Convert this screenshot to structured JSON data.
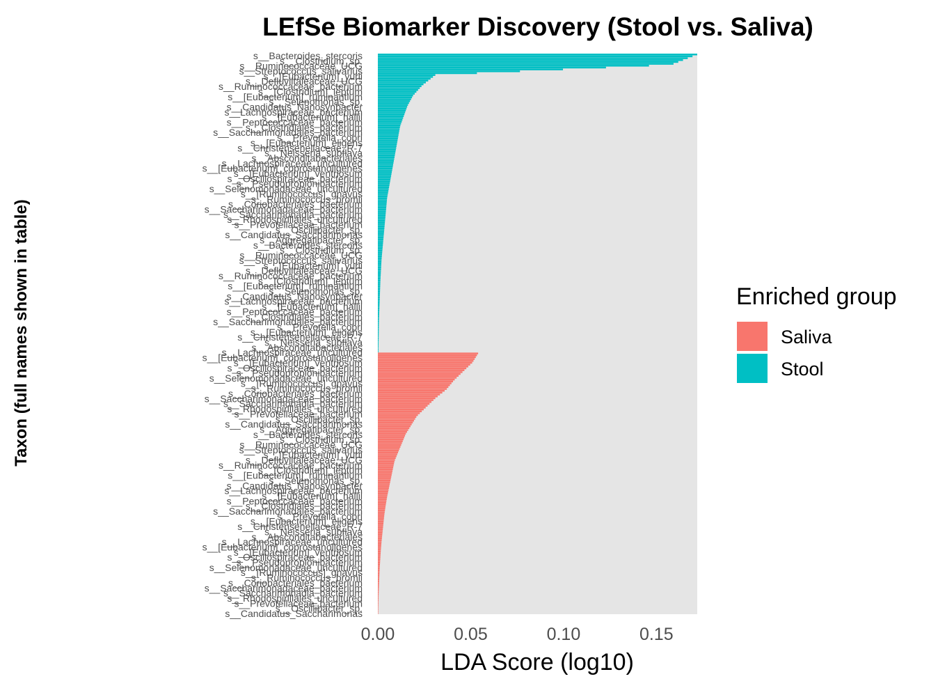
{
  "chart_data": {
    "type": "bar",
    "orientation": "horizontal",
    "title": "LEfSe Biomarker Discovery (Stool vs. Saliva)",
    "xlabel": "LDA Score (log10)",
    "ylabel": "Taxon (full names shown in table)",
    "xlim": [
      0,
      0.172
    ],
    "x_ticks": [
      "0.00",
      "0.05",
      "0.10",
      "0.15"
    ],
    "x_tick_values": [
      0,
      0.05,
      0.1,
      0.15
    ],
    "grid": false,
    "legend": {
      "title": "Enriched group",
      "placement": "right",
      "entries": [
        {
          "name": "Saliva",
          "color": "#F8766D"
        },
        {
          "name": "Stool",
          "color": "#00BFC4"
        }
      ]
    },
    "series": [
      {
        "name": "Stool",
        "color": "#00BFC4",
        "count": 160,
        "values": [
          0.172,
          0.158,
          0.031,
          0.024,
          0.019,
          0.016,
          0.014,
          0.012,
          0.011,
          0.01,
          0.009,
          0.008,
          0.007,
          0.006,
          0.005,
          0.0045,
          0.004,
          0.0035,
          0.003,
          0.0025,
          0.002,
          0.0017,
          0.0014,
          0.0012,
          0.001,
          0.0008,
          0.0006,
          0.0005,
          0.0004,
          0.0003
        ]
      },
      {
        "name": "Saliva",
        "color": "#F8766D",
        "count": 140,
        "values": [
          0.054,
          0.051,
          0.046,
          0.041,
          0.037,
          0.031,
          0.026,
          0.021,
          0.018,
          0.015,
          0.013,
          0.011,
          0.009,
          0.008,
          0.007,
          0.006,
          0.005,
          0.0042,
          0.0035,
          0.003,
          0.0025,
          0.002,
          0.0016,
          0.0013,
          0.001,
          0.0008,
          0.0006,
          0.0004,
          0.0003,
          0.0002
        ]
      }
    ],
    "taxon_labels": [
      "s__Bacteroides_stercoris",
      "s__Prevotella_copri",
      "s__Rhodospirillales_uncultured",
      "s__Lachnospiraceae_bacterium",
      "s__[Ruminococcus]_gnavus",
      "s__Ruminococcaceae_bacterium",
      "s__[Eubacterium]_coprostanoligenes",
      "s__Clostridium_sp.",
      "s__[Eubacterium]_eligens",
      "s__Prevotellaceae_bacterium",
      "s__[Eubacterium]_hallii",
      "s__Ruminococcus_bromii",
      "s__[Clostridium]_leptum",
      "s__[Eubacterium]_ventriosum",
      "s__Ruminococcaceae_UCG",
      "s__Christensenellaceae_R-7",
      "s__Oscillibacter_sp.",
      "s__Peptococcaceae_bacterium",
      "s__Coriobacteriales_bacterium",
      "s__[Eubacterium]_ruminantium",
      "s__Oscillospiraceae_bacterium",
      "s__Streptococcus_salivarius",
      "s__Neisseria_subflava",
      "s__Candidatus_Saccharimonas",
      "s__Clostridiales_bacterium",
      "s__Saccharimonadaceae_bacterium",
      "s__Selenomonas_sp.",
      "s__Pseudopropionibacterium",
      "s__[Eubacterium]_yurii",
      "s__Absconditabacteriales",
      "s__Aggregatibacter_sp.",
      "s__Saccharimonadales_bacterium",
      "s__Saccharimonadia_bacterium",
      "s__Candidatus_Nanosynbacter",
      "s__Selenomonadaceae_uncultured",
      "s__Defluviitaleaceae_UCG",
      "s__Lachnospiraceae_uncultured"
    ]
  }
}
